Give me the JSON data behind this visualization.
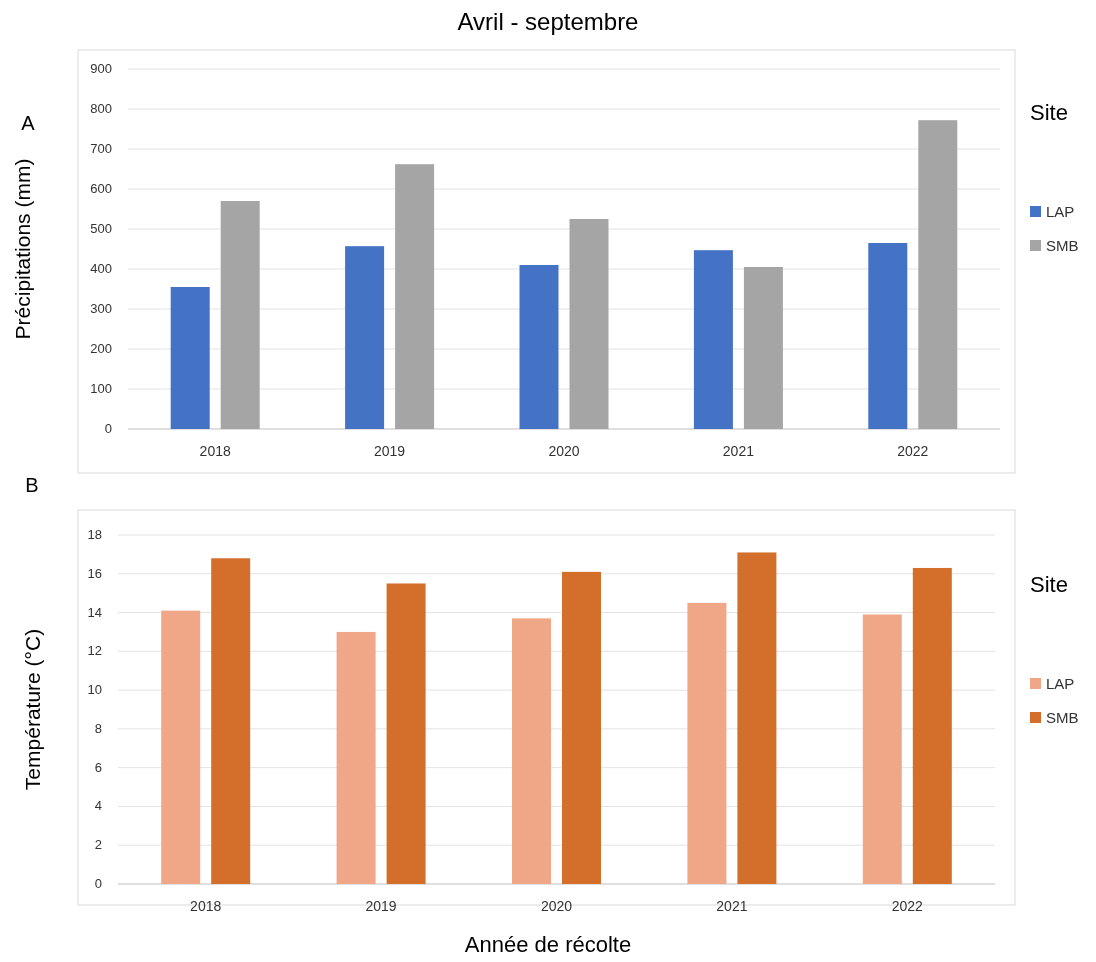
{
  "chart_data": [
    {
      "type": "bar",
      "title": "Avril - septembre",
      "ylabel": "Précipitations (mm)",
      "annotations": [
        "A"
      ],
      "legend_title": "Site",
      "legend": "right",
      "grid": "y",
      "categories": [
        "2018",
        "2019",
        "2020",
        "2021",
        "2022"
      ],
      "ylim": [
        0,
        900
      ],
      "yticks": [
        0,
        100,
        200,
        300,
        400,
        500,
        600,
        700,
        800,
        900
      ],
      "series": [
        {
          "name": "LAP",
          "color": "#4472c4",
          "values": [
            355,
            457,
            410,
            447,
            465
          ]
        },
        {
          "name": "SMB",
          "color": "#a5a5a5",
          "values": [
            570,
            662,
            525,
            405,
            772
          ]
        }
      ]
    },
    {
      "type": "bar",
      "xlabel": "Année de récolte",
      "ylabel": "Température (°C)",
      "annotations": [
        "B"
      ],
      "legend_title": "Site",
      "legend": "right",
      "grid": "y",
      "categories": [
        "2018",
        "2019",
        "2020",
        "2021",
        "2022"
      ],
      "ylim": [
        0,
        18
      ],
      "yticks": [
        0,
        2,
        4,
        6,
        8,
        10,
        12,
        14,
        16,
        18
      ],
      "series": [
        {
          "name": "LAP",
          "color": "#f0a787",
          "values": [
            14.1,
            13.0,
            13.7,
            14.5,
            13.9
          ]
        },
        {
          "name": "SMB",
          "color": "#d46e2b",
          "values": [
            16.8,
            15.5,
            16.1,
            17.1,
            16.3
          ]
        }
      ]
    }
  ]
}
